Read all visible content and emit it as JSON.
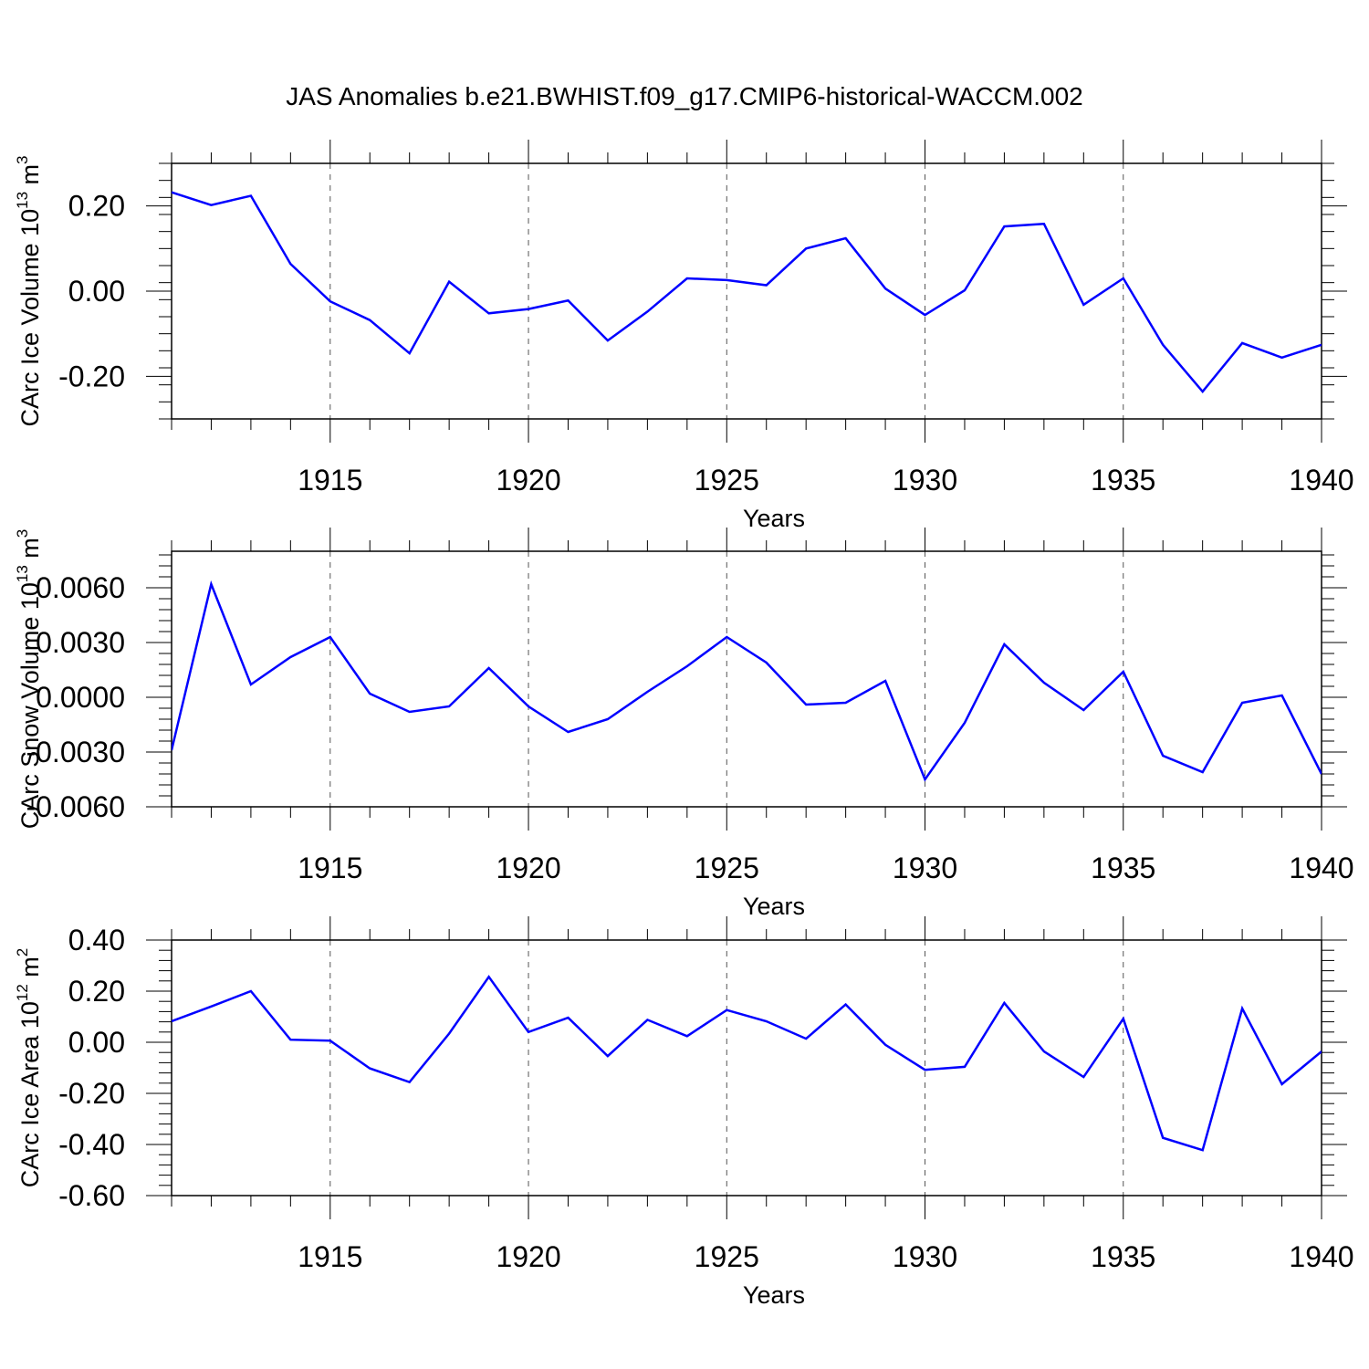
{
  "title": "JAS Anomalies b.e21.BWHIST.f09_g17.CMIP6-historical-WACCM.002",
  "line_color": "#0000ff",
  "chart_data": [
    {
      "type": "line",
      "ylabel": "CArc Ice Volume 10",
      "ylabel_sup": "13",
      "ylabel_unit": " m",
      "ylabel_unit_sup": "3",
      "xlabel": "Years",
      "xlim": [
        1911,
        1940
      ],
      "ylim": [
        -0.3,
        0.3
      ],
      "x_ticks": [
        1915,
        1920,
        1925,
        1930,
        1935,
        1940
      ],
      "x_tick_labels": [
        "1915",
        "1920",
        "1925",
        "1930",
        "1935",
        "1940"
      ],
      "y_ticks": [
        0.2,
        0.0,
        -0.2
      ],
      "y_tick_labels": [
        "0.20",
        "0.00",
        "-0.20"
      ],
      "y_minor_step": 0.04,
      "grid": "vertical dashed at major x ticks",
      "x": [
        1911,
        1912,
        1913,
        1914,
        1915,
        1916,
        1917,
        1918,
        1919,
        1920,
        1921,
        1922,
        1923,
        1924,
        1925,
        1926,
        1927,
        1928,
        1929,
        1930,
        1931,
        1932,
        1933,
        1934,
        1935,
        1936,
        1937,
        1938,
        1939,
        1940
      ],
      "values": [
        0.232,
        0.202,
        0.224,
        0.064,
        -0.024,
        -0.068,
        -0.146,
        0.022,
        -0.052,
        -0.042,
        -0.022,
        -0.116,
        -0.048,
        0.03,
        0.026,
        0.014,
        0.1,
        0.124,
        0.006,
        -0.056,
        0.002,
        0.152,
        0.158,
        -0.032,
        0.03,
        -0.126,
        -0.236,
        -0.122,
        -0.156,
        -0.126
      ]
    },
    {
      "type": "line",
      "ylabel": "CArc Snow Volume 10",
      "ylabel_sup": "13",
      "ylabel_unit": " m",
      "ylabel_unit_sup": "3",
      "xlabel": "Years",
      "xlim": [
        1911,
        1940
      ],
      "ylim": [
        -0.006,
        0.008
      ],
      "x_ticks": [
        1915,
        1920,
        1925,
        1930,
        1935,
        1940
      ],
      "x_tick_labels": [
        "1915",
        "1920",
        "1925",
        "1930",
        "1935",
        "1940"
      ],
      "y_ticks": [
        0.006,
        0.003,
        0.0,
        -0.003,
        -0.006
      ],
      "y_tick_labels": [
        "0.0060",
        "0.0030",
        "0.0000",
        "-0.0030",
        "-0.0060"
      ],
      "y_minor_step": 0.0006,
      "grid": "vertical dashed at major x ticks",
      "x": [
        1911,
        1912,
        1913,
        1914,
        1915,
        1916,
        1917,
        1918,
        1919,
        1920,
        1921,
        1922,
        1923,
        1924,
        1925,
        1926,
        1927,
        1928,
        1929,
        1930,
        1931,
        1932,
        1933,
        1934,
        1935,
        1936,
        1937,
        1938,
        1939,
        1940
      ],
      "values": [
        -0.0029,
        0.0062,
        0.0007,
        0.0022,
        0.0033,
        0.0002,
        -0.0008,
        -0.0005,
        0.0016,
        -0.0005,
        -0.0019,
        -0.0012,
        0.0003,
        0.0017,
        0.0033,
        0.0019,
        -0.0004,
        -0.0003,
        0.0009,
        -0.0045,
        -0.0014,
        0.0029,
        0.0008,
        -0.0007,
        0.0014,
        -0.0032,
        -0.0041,
        -0.0003,
        0.0001,
        -0.0042
      ]
    },
    {
      "type": "line",
      "ylabel": "CArc Ice Area 10",
      "ylabel_sup": "12",
      "ylabel_unit": " m",
      "ylabel_unit_sup": "2",
      "xlabel": "Years",
      "xlim": [
        1911,
        1940
      ],
      "ylim": [
        -0.6,
        0.4
      ],
      "x_ticks": [
        1915,
        1920,
        1925,
        1930,
        1935,
        1940
      ],
      "x_tick_labels": [
        "1915",
        "1920",
        "1925",
        "1930",
        "1935",
        "1940"
      ],
      "y_ticks": [
        0.4,
        0.2,
        0.0,
        -0.2,
        -0.4,
        -0.6
      ],
      "y_tick_labels": [
        "0.40",
        "0.20",
        "0.00",
        "-0.20",
        "-0.40",
        "-0.60"
      ],
      "y_minor_step": 0.04,
      "grid": "vertical dashed at major x ticks",
      "x": [
        1911,
        1912,
        1913,
        1914,
        1915,
        1916,
        1917,
        1918,
        1919,
        1920,
        1921,
        1922,
        1923,
        1924,
        1925,
        1926,
        1927,
        1928,
        1929,
        1930,
        1931,
        1932,
        1933,
        1934,
        1935,
        1936,
        1937,
        1938,
        1939,
        1940
      ],
      "values": [
        0.082,
        0.14,
        0.2,
        0.01,
        0.006,
        -0.102,
        -0.156,
        0.034,
        0.256,
        0.04,
        0.096,
        -0.054,
        0.088,
        0.024,
        0.126,
        0.082,
        0.014,
        0.148,
        -0.01,
        -0.108,
        -0.096,
        0.154,
        -0.036,
        -0.136,
        0.092,
        -0.374,
        -0.422,
        0.132,
        -0.164,
        -0.036
      ]
    }
  ]
}
